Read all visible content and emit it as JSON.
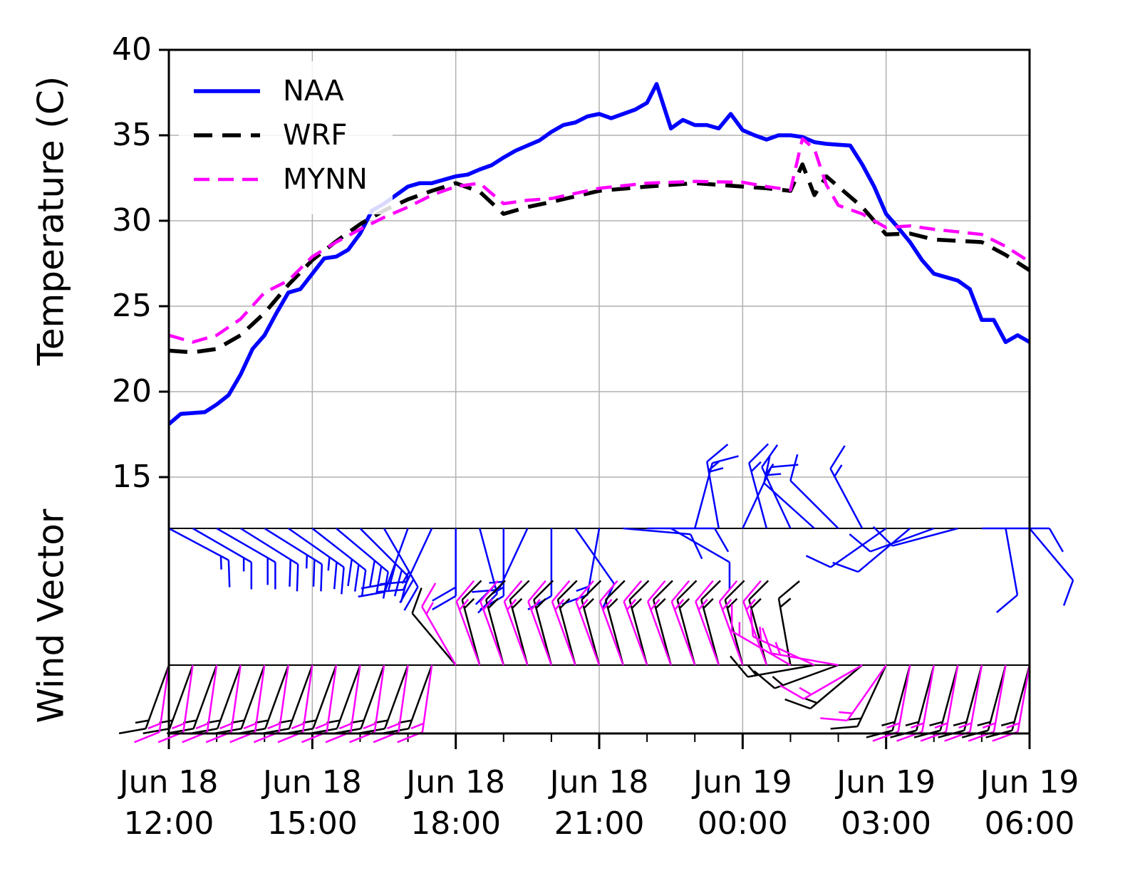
{
  "chart_data": {
    "type": "line",
    "ylabel": "Temperature (C)",
    "wind_label": "Wind Vector",
    "xlim": [
      "Jun 18 12:00",
      "Jun 19 06:00"
    ],
    "xticks": [
      {
        "value": "Jun 18 12:00",
        "label": "Jun 18\n12:00"
      },
      {
        "value": "Jun 18 15:00",
        "label": "Jun 18\n15:00"
      },
      {
        "value": "Jun 18 18:00",
        "label": "Jun 18\n18:00"
      },
      {
        "value": "Jun 18 21:00",
        "label": "Jun 18\n21:00"
      },
      {
        "value": "Jun 19 00:00",
        "label": "Jun 19\n00:00"
      },
      {
        "value": "Jun 19 03:00",
        "label": "Jun 19\n03:00"
      },
      {
        "value": "Jun 19 06:00",
        "label": "Jun 19\n06:00"
      }
    ],
    "xminorticks": [
      "Jun 18 13:00",
      "Jun 18 14:00",
      "Jun 18 16:00",
      "Jun 18 17:00",
      "Jun 18 19:00",
      "Jun 18 20:00",
      "Jun 18 22:00",
      "Jun 18 23:00",
      "Jun 19 01:00",
      "Jun 19 02:00",
      "Jun 19 04:00",
      "Jun 19 05:00"
    ],
    "ylim": [
      0,
      40
    ],
    "yticks": [
      15,
      20,
      25,
      30,
      35,
      40
    ],
    "grid": true,
    "legend": "upper left",
    "wind_x": [
      "Jun 18 12:00",
      "Jun 18 12:30",
      "Jun 18 13:00",
      "Jun 18 13:30",
      "Jun 18 14:00",
      "Jun 18 14:30",
      "Jun 18 15:00",
      "Jun 18 15:30",
      "Jun 18 16:00",
      "Jun 18 16:30",
      "Jun 18 17:00",
      "Jun 18 17:30",
      "Jun 18 18:00",
      "Jun 18 18:30",
      "Jun 18 19:00",
      "Jun 18 19:30",
      "Jun 18 20:00",
      "Jun 18 20:30",
      "Jun 18 21:00",
      "Jun 18 21:30",
      "Jun 18 22:00",
      "Jun 18 22:30",
      "Jun 18 23:00",
      "Jun 18 23:30",
      "Jun 19 00:00",
      "Jun 19 00:30",
      "Jun 19 01:00",
      "Jun 19 01:30",
      "Jun 19 02:00",
      "Jun 19 02:30",
      "Jun 19 03:00",
      "Jun 19 03:30",
      "Jun 19 04:00",
      "Jun 19 04:30",
      "Jun 19 05:00",
      "Jun 19 05:30",
      "Jun 19 06:00"
    ],
    "series": [
      {
        "name": "NAA",
        "color": "#0000ff",
        "linestyle": "solid",
        "x": [
          "Jun 18 12:00",
          "Jun 18 12:15",
          "Jun 18 12:30",
          "Jun 18 12:45",
          "Jun 18 13:00",
          "Jun 18 13:15",
          "Jun 18 13:30",
          "Jun 18 13:45",
          "Jun 18 14:00",
          "Jun 18 14:15",
          "Jun 18 14:30",
          "Jun 18 14:45",
          "Jun 18 15:00",
          "Jun 18 15:15",
          "Jun 18 15:30",
          "Jun 18 15:45",
          "Jun 18 16:00",
          "Jun 18 16:15",
          "Jun 18 16:30",
          "Jun 18 16:45",
          "Jun 18 17:00",
          "Jun 18 17:15",
          "Jun 18 17:30",
          "Jun 18 17:45",
          "Jun 18 18:00",
          "Jun 18 18:15",
          "Jun 18 18:30",
          "Jun 18 18:45",
          "Jun 18 19:00",
          "Jun 18 19:15",
          "Jun 18 19:30",
          "Jun 18 19:45",
          "Jun 18 20:00",
          "Jun 18 20:15",
          "Jun 18 20:30",
          "Jun 18 20:45",
          "Jun 18 21:00",
          "Jun 18 21:15",
          "Jun 18 21:30",
          "Jun 18 21:45",
          "Jun 18 22:00",
          "Jun 18 22:12",
          "Jun 18 22:30",
          "Jun 18 22:45",
          "Jun 18 23:00",
          "Jun 18 23:15",
          "Jun 18 23:30",
          "Jun 18 23:45",
          "Jun 19 00:00",
          "Jun 19 00:15",
          "Jun 19 00:30",
          "Jun 19 00:45",
          "Jun 19 01:00",
          "Jun 19 01:15",
          "Jun 19 01:30",
          "Jun 19 01:45",
          "Jun 19 02:00",
          "Jun 19 02:15",
          "Jun 19 02:30",
          "Jun 19 02:45",
          "Jun 19 03:00",
          "Jun 19 03:15",
          "Jun 19 03:30",
          "Jun 19 03:45",
          "Jun 19 04:00",
          "Jun 19 04:15",
          "Jun 19 04:30",
          "Jun 19 04:45",
          "Jun 19 05:00",
          "Jun 19 05:15",
          "Jun 19 05:30",
          "Jun 19 05:45",
          "Jun 19 06:00"
        ],
        "values": [
          18.1,
          18.7,
          18.75,
          18.8,
          19.25,
          19.8,
          21.0,
          22.5,
          23.3,
          24.6,
          25.8,
          26.0,
          26.9,
          27.8,
          27.9,
          28.3,
          29.25,
          30.6,
          31.0,
          31.5,
          32.0,
          32.2,
          32.2,
          32.4,
          32.6,
          32.7,
          33.0,
          33.25,
          33.7,
          34.1,
          34.4,
          34.7,
          35.2,
          35.6,
          35.75,
          36.1,
          36.25,
          36.0,
          36.25,
          36.5,
          36.9,
          38.0,
          35.4,
          35.9,
          35.6,
          35.6,
          35.4,
          36.25,
          35.3,
          35.0,
          34.75,
          35.0,
          35.0,
          34.9,
          34.6,
          34.5,
          34.45,
          34.4,
          33.3,
          32.0,
          30.4,
          29.6,
          28.75,
          27.7,
          26.9,
          26.7,
          26.5,
          26.0,
          24.2,
          24.2,
          22.9,
          23.3,
          22.9
        ],
        "wind": {
          "baseline": 12,
          "direction": [
            118,
            120,
            120,
            122,
            122,
            125,
            128,
            130,
            135,
            150,
            200,
            205,
            180,
            165,
            180,
            205,
            180,
            145,
            190,
            95,
            90,
            120,
            15,
            350,
            25,
            345,
            335,
            312,
            315,
            332,
            235,
            230,
            250,
            255,
            90,
            170,
            140
          ],
          "speed": [
            15,
            15,
            20,
            20,
            25,
            25,
            30,
            30,
            30,
            25,
            20,
            20,
            20,
            20,
            15,
            15,
            10,
            10,
            15,
            10,
            10,
            10,
            15,
            15,
            15,
            15,
            15,
            10,
            10,
            15,
            10,
            10,
            10,
            10,
            10,
            10,
            10
          ]
        }
      },
      {
        "name": "WRF",
        "color": "#000000",
        "linestyle": "dashed",
        "x": [
          "Jun 18 12:00",
          "Jun 18 12:30",
          "Jun 18 13:00",
          "Jun 18 13:30",
          "Jun 18 14:00",
          "Jun 18 14:30",
          "Jun 18 15:00",
          "Jun 18 15:30",
          "Jun 18 16:00",
          "Jun 18 16:30",
          "Jun 18 17:00",
          "Jun 18 17:30",
          "Jun 18 18:00",
          "Jun 18 18:30",
          "Jun 18 19:00",
          "Jun 18 19:30",
          "Jun 18 20:00",
          "Jun 18 21:00",
          "Jun 18 22:00",
          "Jun 18 23:00",
          "Jun 19 00:00",
          "Jun 19 00:30",
          "Jun 19 01:00",
          "Jun 19 01:15",
          "Jun 19 01:30",
          "Jun 19 01:45",
          "Jun 19 02:00",
          "Jun 19 02:30",
          "Jun 19 03:00",
          "Jun 19 03:30",
          "Jun 19 04:00",
          "Jun 19 05:00",
          "Jun 19 05:30",
          "Jun 19 06:00"
        ],
        "values": [
          22.4,
          22.3,
          22.5,
          23.3,
          24.6,
          26.25,
          27.7,
          28.8,
          29.8,
          30.6,
          31.25,
          31.75,
          32.2,
          31.7,
          30.4,
          30.8,
          31.1,
          31.75,
          32.0,
          32.2,
          32.0,
          31.9,
          31.75,
          33.3,
          31.5,
          32.6,
          32.0,
          30.8,
          29.2,
          29.25,
          28.9,
          28.75,
          28.0,
          27.1
        ],
        "wind": {
          "baseline": 4,
          "direction": [
            200,
            200,
            200,
            200,
            200,
            200,
            200,
            200,
            200,
            200,
            200,
            200,
            320,
            345,
            345,
            345,
            345,
            345,
            345,
            345,
            345,
            345,
            345,
            345,
            345,
            345,
            350,
            260,
            250,
            230,
            205,
            195,
            195,
            195,
            195,
            195,
            195
          ],
          "speed": [
            15,
            15,
            15,
            15,
            15,
            15,
            15,
            15,
            15,
            15,
            15,
            15,
            10,
            15,
            15,
            15,
            15,
            15,
            15,
            15,
            15,
            15,
            15,
            15,
            15,
            15,
            15,
            15,
            15,
            15,
            15,
            15,
            15,
            15,
            15,
            15,
            15
          ]
        }
      },
      {
        "name": "MYNN",
        "color": "#ff00ff",
        "linestyle": "dashed",
        "x": [
          "Jun 18 12:00",
          "Jun 18 12:30",
          "Jun 18 13:00",
          "Jun 18 13:30",
          "Jun 18 14:00",
          "Jun 18 14:30",
          "Jun 18 15:00",
          "Jun 18 15:30",
          "Jun 18 16:00",
          "Jun 18 16:30",
          "Jun 18 17:00",
          "Jun 18 17:30",
          "Jun 18 18:00",
          "Jun 18 18:30",
          "Jun 18 19:00",
          "Jun 18 19:30",
          "Jun 18 20:00",
          "Jun 18 21:00",
          "Jun 18 22:00",
          "Jun 18 23:00",
          "Jun 19 00:00",
          "Jun 19 00:30",
          "Jun 19 01:00",
          "Jun 19 01:15",
          "Jun 19 01:30",
          "Jun 19 01:45",
          "Jun 19 02:00",
          "Jun 19 02:30",
          "Jun 19 03:00",
          "Jun 19 03:30",
          "Jun 19 04:00",
          "Jun 19 05:00",
          "Jun 19 05:30",
          "Jun 19 06:00"
        ],
        "values": [
          23.3,
          22.9,
          23.3,
          24.25,
          25.8,
          26.5,
          27.9,
          28.75,
          29.5,
          30.2,
          30.8,
          31.5,
          32.0,
          32.2,
          31.0,
          31.2,
          31.3,
          31.9,
          32.2,
          32.3,
          32.25,
          32.0,
          31.8,
          34.8,
          34.2,
          32.1,
          30.9,
          30.4,
          29.6,
          29.7,
          29.5,
          29.2,
          28.5,
          27.6
        ],
        "wind": {
          "baseline": 4,
          "direction": [
            188,
            188,
            188,
            188,
            188,
            188,
            188,
            188,
            188,
            188,
            188,
            188,
            330,
            340,
            340,
            340,
            340,
            340,
            340,
            340,
            340,
            340,
            340,
            340,
            340,
            340,
            300,
            295,
            280,
            240,
            215,
            190,
            190,
            190,
            190,
            190,
            190
          ],
          "speed": [
            15,
            15,
            15,
            15,
            15,
            15,
            15,
            15,
            15,
            15,
            15,
            15,
            15,
            15,
            15,
            15,
            15,
            15,
            15,
            15,
            15,
            15,
            15,
            15,
            15,
            15,
            15,
            15,
            15,
            15,
            15,
            15,
            15,
            15,
            15,
            15,
            15
          ]
        }
      }
    ]
  }
}
